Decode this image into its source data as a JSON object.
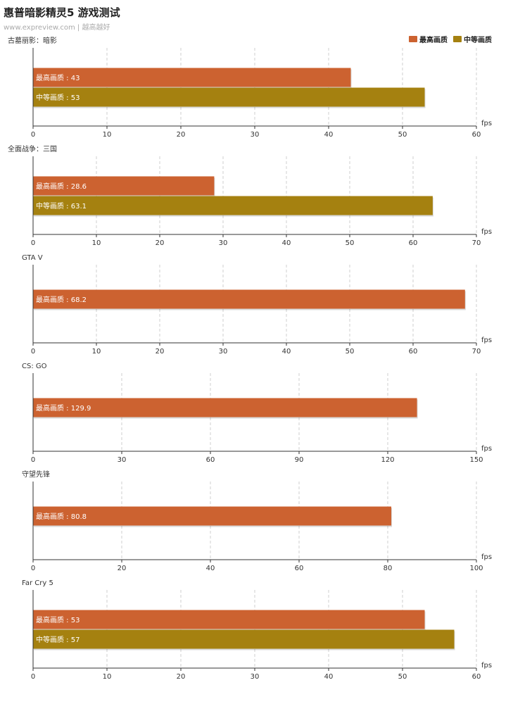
{
  "title": "惠普暗影精灵5 游戏测试",
  "subtitle": "www.expreview.com | 越高越好",
  "colors": {
    "max": "#cc6230",
    "mid": "#a58110"
  },
  "legend": [
    {
      "name": "最高画质",
      "color": "#cc6230"
    },
    {
      "name": "中等画质",
      "color": "#a58110"
    }
  ],
  "unit": "fps",
  "chart_data": [
    {
      "type": "bar",
      "title": "古墓丽影：暗影",
      "xlim": [
        0,
        60
      ],
      "ticks": [
        0,
        10,
        20,
        30,
        40,
        50,
        60
      ],
      "series": [
        {
          "name": "最高画质",
          "value": 43
        },
        {
          "name": "中等画质",
          "value": 53
        }
      ]
    },
    {
      "type": "bar",
      "title": "全面战争：三国",
      "xlim": [
        0,
        70
      ],
      "ticks": [
        0,
        10,
        20,
        30,
        40,
        50,
        60,
        70
      ],
      "series": [
        {
          "name": "最高画质",
          "value": 28.6
        },
        {
          "name": "中等画质",
          "value": 63.1
        }
      ]
    },
    {
      "type": "bar",
      "title": "GTA V",
      "xlim": [
        0,
        70
      ],
      "ticks": [
        0,
        10,
        20,
        30,
        40,
        50,
        60,
        70
      ],
      "series": [
        {
          "name": "最高画质",
          "value": 68.2
        }
      ]
    },
    {
      "type": "bar",
      "title": "CS: GO",
      "xlim": [
        0,
        150
      ],
      "ticks": [
        0,
        30,
        60,
        90,
        120,
        150
      ],
      "series": [
        {
          "name": "最高画质",
          "value": 129.9
        }
      ]
    },
    {
      "type": "bar",
      "title": "守望先锋",
      "xlim": [
        0,
        100
      ],
      "ticks": [
        0,
        20,
        40,
        60,
        80,
        100
      ],
      "series": [
        {
          "name": "最高画质",
          "value": 80.8
        }
      ]
    },
    {
      "type": "bar",
      "title": "Far Cry 5",
      "xlim": [
        0,
        60
      ],
      "ticks": [
        0,
        10,
        20,
        30,
        40,
        50,
        60
      ],
      "series": [
        {
          "name": "最高画质",
          "value": 53
        },
        {
          "name": "中等画质",
          "value": 57
        }
      ]
    }
  ]
}
